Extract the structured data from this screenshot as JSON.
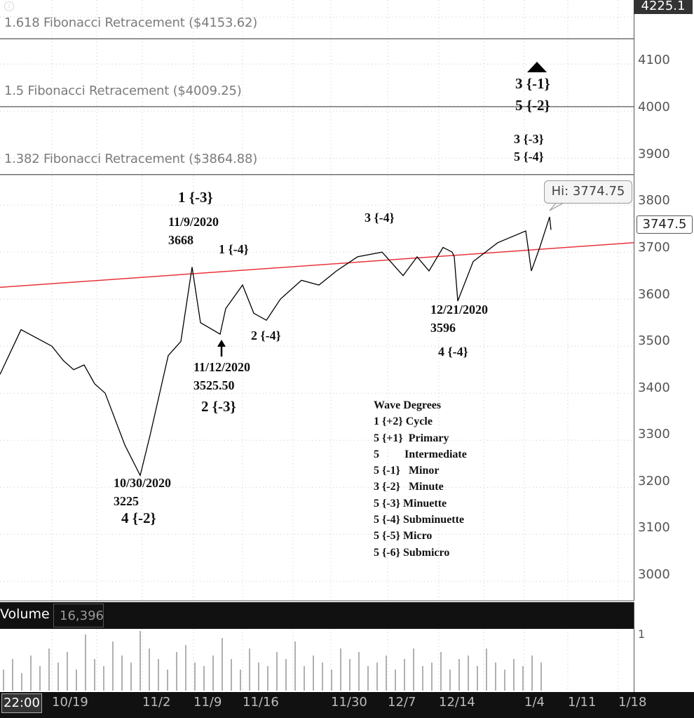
{
  "fib_levels": [
    {
      "label": "1.618 Fibonacci Retracement ($4153.62)",
      "value": 4153.62
    },
    {
      "label": "1.5 Fibonacci  Retracement  ($4009.25)",
      "value": 4009.25
    },
    {
      "label": "1.382 Fibonacci Retracement ($3864.88)",
      "value": 3864.88
    }
  ],
  "price_axis": {
    "ticks": [
      "4100",
      "4000",
      "3900",
      "3800",
      "3700",
      "3600",
      "3500",
      "3400",
      "3300",
      "3200",
      "3100",
      "3000"
    ],
    "top_value": "4225.1",
    "last_price": "3747.5",
    "hi_label": "Hi: 3774.75"
  },
  "annotations": {
    "wave_1_minus3": "1 {-3}",
    "date_11_9": "11/9/2020",
    "price_3668": "3668",
    "wave_1_minus4": "1 {-4}",
    "wave_3_minus4": "3 {-4}",
    "wave_2_minus4": "2 {-4}",
    "date_11_12": "11/12/2020",
    "price_3525": "3525.50",
    "wave_2_minus3": "2 {-3}",
    "date_12_21": "12/21/2020",
    "price_3596": "3596",
    "wave_4_minus4": "4 {-4}",
    "date_10_30": "10/30/2020",
    "price_3225": "3225",
    "wave_4_minus2": "4 {-2}",
    "wave_3_minus1": "3 {-1}",
    "wave_5_minus2": "5 {-2}",
    "wave_3_minus3": "3 {-3}",
    "wave_5_minus4": "5 {-4}"
  },
  "legend": {
    "title": "Wave Degrees",
    "rows": [
      "1 {+2} Cycle",
      "5 {+1}  Primary",
      "5         Intermediate",
      "5 {-1}   Minor",
      "3 {-2}   Minute",
      "5 {-3} Minuette",
      "5 {-4} Subminuette",
      "5 {-5} Micro",
      "5 {-6} Submicro"
    ]
  },
  "volume": {
    "title": "Volume",
    "value": "16,396",
    "axis_top": "1"
  },
  "date_axis": {
    "time_label": "22:00",
    "labels": [
      "10/19",
      "11/2",
      "11/9",
      "11/16",
      "11/30",
      "12/7",
      "12/14",
      "1/4",
      "1/11",
      "1/18"
    ]
  },
  "colors": {
    "trendline": "#e8333a",
    "price": "#000000",
    "fib_line": "#555555",
    "volume_bar": "#b0b0b0"
  },
  "chart_data": {
    "type": "line",
    "title": "",
    "xlabel": "",
    "ylabel": "",
    "ylim": [
      2975,
      4225.1
    ],
    "x_dates": [
      "10/19",
      "11/2",
      "11/9",
      "11/16",
      "11/30",
      "12/7",
      "12/14",
      "1/4",
      "1/11",
      "1/18"
    ],
    "series": [
      {
        "values": [
          {
            "x": "10/14",
            "y": 3440
          },
          {
            "x": "10/16",
            "y": 3535
          },
          {
            "x": "10/19",
            "y": 3500
          },
          {
            "x": "10/20",
            "y": 3470
          },
          {
            "x": "10/21",
            "y": 3450
          },
          {
            "x": "10/22",
            "y": 3460
          },
          {
            "x": "10/23",
            "y": 3420
          },
          {
            "x": "10/26",
            "y": 3400
          },
          {
            "x": "10/28",
            "y": 3290
          },
          {
            "x": "10/30",
            "y": 3225
          },
          {
            "x": "11/2",
            "y": 3310
          },
          {
            "x": "11/4",
            "y": 3480
          },
          {
            "x": "11/6",
            "y": 3510
          },
          {
            "x": "11/9",
            "y": 3668
          },
          {
            "x": "11/10",
            "y": 3550
          },
          {
            "x": "11/12",
            "y": 3525.5
          },
          {
            "x": "11/13",
            "y": 3580
          },
          {
            "x": "11/16",
            "y": 3630
          },
          {
            "x": "11/18",
            "y": 3570
          },
          {
            "x": "11/20",
            "y": 3555
          },
          {
            "x": "11/23",
            "y": 3600
          },
          {
            "x": "11/25",
            "y": 3640
          },
          {
            "x": "11/27",
            "y": 3630
          },
          {
            "x": "11/30",
            "y": 3660
          },
          {
            "x": "12/3",
            "y": 3690
          },
          {
            "x": "12/4",
            "y": 3700
          },
          {
            "x": "12/7",
            "y": 3650
          },
          {
            "x": "12/9",
            "y": 3690
          },
          {
            "x": "12/11",
            "y": 3660
          },
          {
            "x": "12/14",
            "y": 3710
          },
          {
            "x": "12/16",
            "y": 3700
          },
          {
            "x": "12/18",
            "y": 3690
          },
          {
            "x": "12/21",
            "y": 3596
          },
          {
            "x": "12/23",
            "y": 3680
          },
          {
            "x": "12/28",
            "y": 3720
          },
          {
            "x": "12/31",
            "y": 3745
          },
          {
            "x": "1/4",
            "y": 3660
          },
          {
            "x": "1/5",
            "y": 3710
          },
          {
            "x": "1/6",
            "y": 3774.75
          },
          {
            "x": "1/6b",
            "y": 3747.5
          }
        ]
      }
    ],
    "trendline": {
      "from": {
        "x": "10/14",
        "y": 3625
      },
      "to": {
        "x": "1/21",
        "y": 3720
      }
    },
    "volume": {
      "ylim": [
        0,
        1
      ]
    }
  }
}
